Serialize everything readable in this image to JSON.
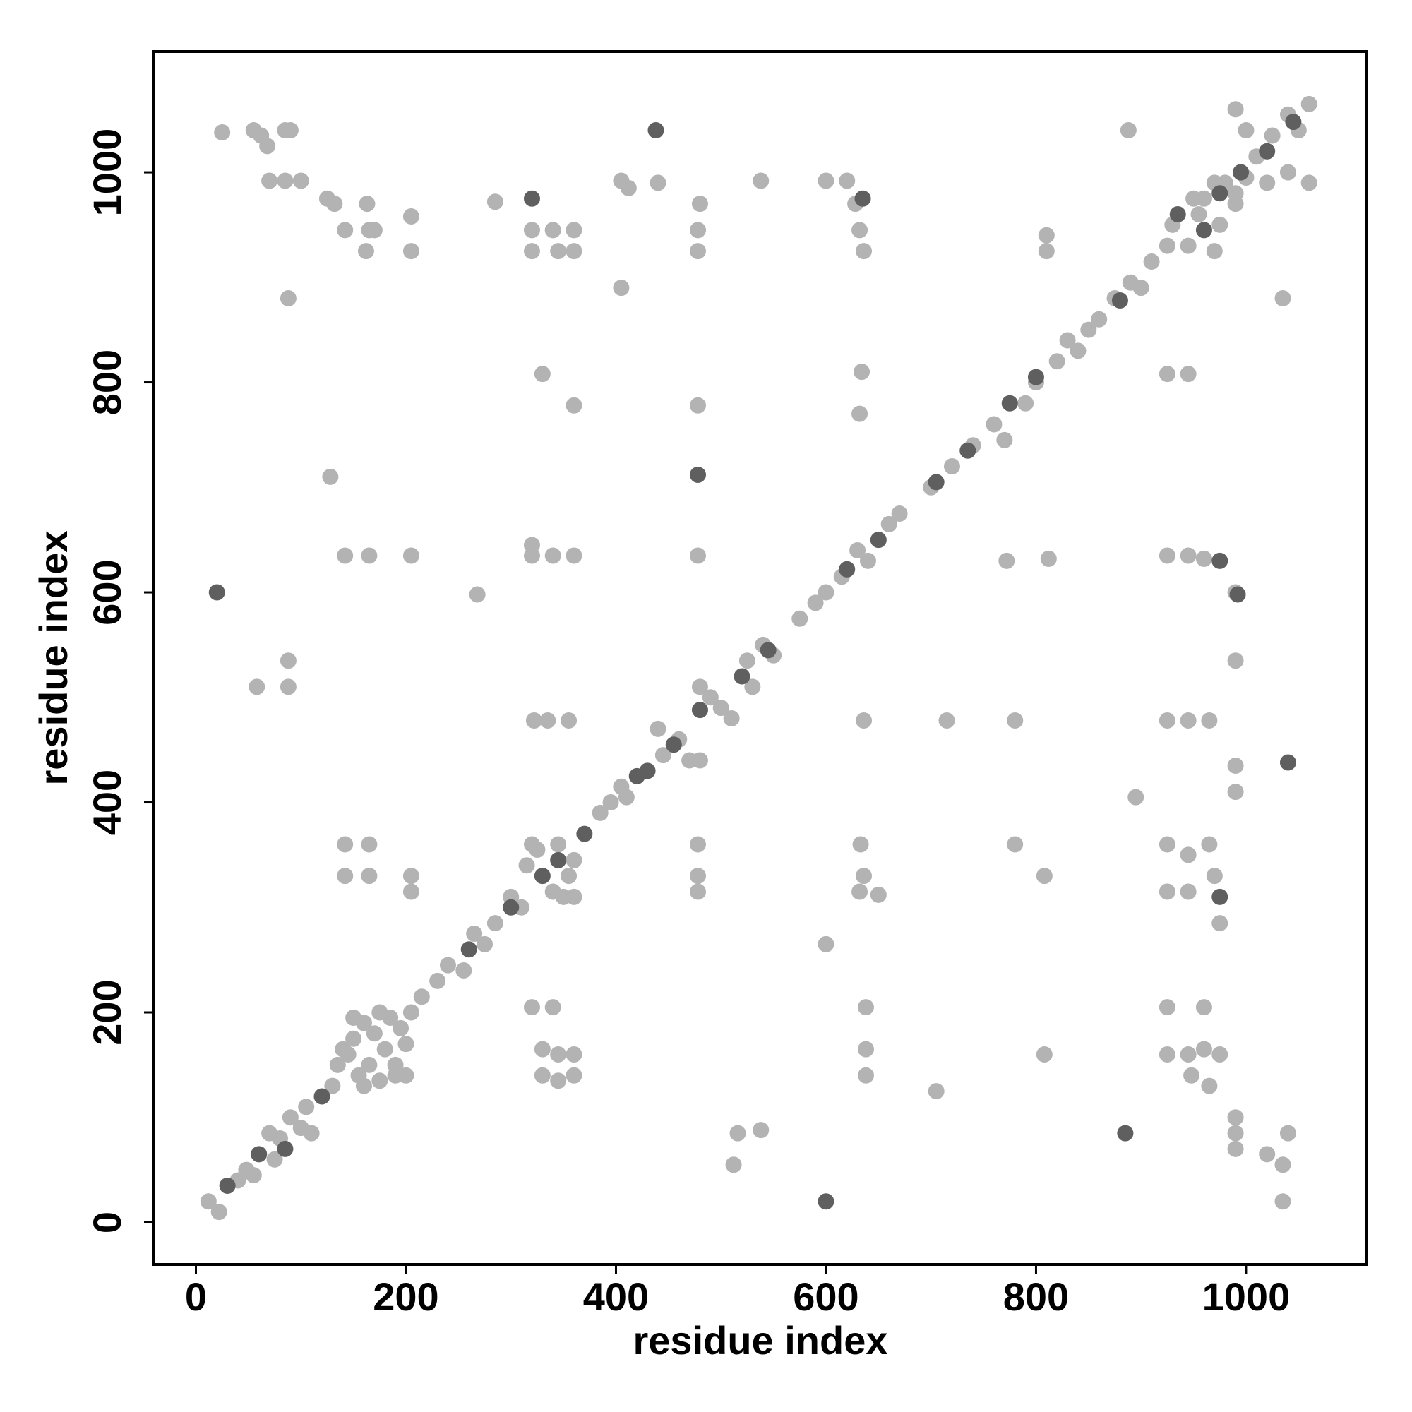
{
  "chart_data": {
    "type": "scatter",
    "xlabel": "residue index",
    "ylabel": "residue index",
    "xlim": [
      -40,
      1115
    ],
    "ylim": [
      -40,
      1115
    ],
    "xticks": [
      0,
      200,
      400,
      600,
      800,
      1000
    ],
    "yticks": [
      0,
      200,
      400,
      600,
      800,
      1000
    ],
    "series": [
      {
        "color": "#b3b3b3",
        "x": [
          12,
          22,
          40,
          48,
          55,
          70,
          80,
          75,
          90,
          100,
          105,
          110,
          130,
          135,
          145,
          150,
          155,
          160,
          165,
          170,
          175,
          180,
          185,
          190,
          195,
          200,
          205,
          150,
          140,
          175,
          190,
          160,
          200,
          215,
          230,
          240,
          255,
          265,
          275,
          285,
          300,
          310,
          315,
          325,
          340,
          355,
          360,
          320,
          345,
          350,
          360,
          385,
          395,
          405,
          410,
          440,
          445,
          460,
          470,
          480,
          490,
          500,
          510,
          525,
          530,
          540,
          550,
          575,
          590,
          600,
          615,
          630,
          640,
          660,
          670,
          700,
          720,
          740,
          760,
          770,
          790,
          800,
          820,
          830,
          840,
          850,
          860,
          875,
          890,
          900,
          910,
          925,
          930,
          945,
          955,
          960,
          970,
          980,
          990,
          1000,
          1010,
          1020,
          1025,
          1040,
          1050,
          1060,
          1060,
          990,
          1000,
          1040,
          990,
          970,
          950,
          975,
          25,
          55,
          62,
          68,
          85,
          90,
          70,
          85,
          100,
          125,
          132,
          163,
          165,
          170,
          162,
          142,
          205,
          205,
          88,
          58,
          88,
          88,
          128,
          142,
          165,
          205,
          142,
          142,
          165,
          165,
          205,
          205,
          285,
          320,
          340,
          360,
          320,
          345,
          360,
          330,
          360,
          320,
          320,
          340,
          360,
          322,
          335,
          355,
          405,
          412,
          405,
          440,
          480,
          478,
          478,
          478,
          478,
          538,
          268,
          600,
          620,
          628,
          632,
          636,
          634,
          632,
          810,
          810,
          888,
          990,
          990,
          990,
          990,
          895,
          965,
          990,
          990,
          990,
          1040,
          1035,
          1020,
          1035,
          1035,
          925,
          945,
          925,
          945,
          960,
          925,
          945,
          965,
          925,
          925,
          945,
          945,
          965,
          970,
          975,
          925,
          960,
          925,
          945,
          960,
          975,
          948,
          808,
          808,
          780,
          772,
          812,
          705,
          638,
          638,
          638,
          633,
          636,
          632,
          650,
          636,
          600,
          516,
          538,
          512,
          478,
          478,
          478,
          480,
          320,
          340,
          330,
          345,
          360,
          330,
          345,
          360,
          780,
          715
        ],
        "y": [
          20,
          10,
          40,
          50,
          45,
          85,
          80,
          60,
          100,
          90,
          110,
          85,
          130,
          150,
          160,
          175,
          140,
          190,
          150,
          180,
          135,
          165,
          195,
          150,
          185,
          170,
          200,
          195,
          165,
          200,
          140,
          130,
          140,
          215,
          230,
          245,
          240,
          275,
          265,
          285,
          310,
          300,
          340,
          355,
          315,
          330,
          345,
          360,
          360,
          310,
          310,
          390,
          400,
          415,
          405,
          470,
          445,
          460,
          440,
          510,
          500,
          490,
          480,
          535,
          510,
          550,
          540,
          575,
          590,
          600,
          615,
          640,
          630,
          665,
          675,
          700,
          720,
          740,
          760,
          745,
          780,
          800,
          820,
          840,
          830,
          850,
          860,
          880,
          895,
          890,
          915,
          930,
          950,
          930,
          960,
          975,
          925,
          990,
          980,
          995,
          1015,
          990,
          1035,
          1055,
          1040,
          1065,
          990,
          1060,
          1040,
          1000,
          970,
          990,
          975,
          950,
          1038,
          1040,
          1035,
          1025,
          1040,
          1040,
          992,
          992,
          992,
          975,
          970,
          970,
          945,
          945,
          925,
          945,
          958,
          925,
          880,
          510,
          510,
          535,
          710,
          635,
          635,
          635,
          360,
          330,
          360,
          330,
          330,
          315,
          972,
          945,
          945,
          945,
          925,
          925,
          925,
          808,
          778,
          645,
          635,
          635,
          635,
          478,
          478,
          478,
          992,
          985,
          890,
          990,
          970,
          945,
          925,
          778,
          635,
          992,
          598,
          992,
          992,
          970,
          945,
          925,
          810,
          770,
          940,
          925,
          1040,
          600,
          535,
          410,
          435,
          405,
          130,
          85,
          100,
          70,
          85,
          55,
          65,
          20,
          880,
          808,
          808,
          635,
          635,
          632,
          478,
          478,
          478,
          360,
          315,
          350,
          315,
          360,
          330,
          285,
          205,
          205,
          160,
          160,
          165,
          160,
          140,
          160,
          330,
          360,
          630,
          632,
          125,
          205,
          165,
          140,
          360,
          330,
          315,
          312,
          478,
          265,
          85,
          88,
          55,
          360,
          330,
          315,
          440,
          205,
          205,
          165,
          160,
          160,
          140,
          135,
          140,
          478,
          478
        ]
      },
      {
        "color": "#5f5f5f",
        "x": [
          20,
          600,
          478,
          885,
          438,
          1040,
          320,
          635,
          30,
          60,
          85,
          120,
          260,
          300,
          330,
          345,
          370,
          420,
          430,
          455,
          480,
          520,
          545,
          620,
          650,
          705,
          735,
          775,
          800,
          880,
          935,
          960,
          975,
          995,
          1020,
          1045,
          975,
          975,
          992
        ],
        "y": [
          600,
          20,
          712,
          85,
          1040,
          438,
          975,
          975,
          35,
          65,
          70,
          120,
          260,
          300,
          330,
          345,
          370,
          425,
          430,
          455,
          488,
          520,
          545,
          622,
          650,
          705,
          735,
          780,
          805,
          878,
          960,
          945,
          980,
          1000,
          1020,
          1048,
          310,
          630,
          598
        ]
      }
    ]
  }
}
